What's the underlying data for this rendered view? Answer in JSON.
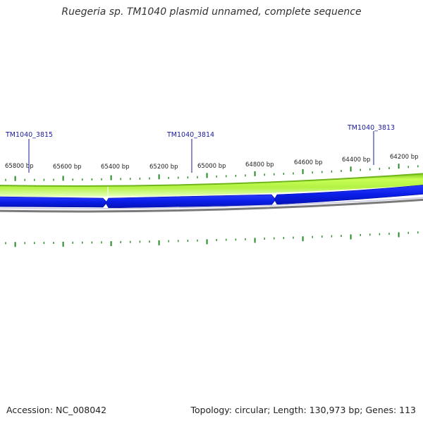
{
  "title": "Ruegeria sp. TM1040 plasmid unnamed, complete sequence",
  "footer": {
    "accession": "Accession: NC_008042",
    "summary": "Topology: circular; Length: 130,973 bp; Genes: 113"
  },
  "colors": {
    "gc_band": "#a8f040",
    "gc_band_edge": "#6fb51c",
    "gene_forward": "#0a1ee8",
    "backbone": "#7a7a7a",
    "tick": "#228b22",
    "gene_label": "#1a1a9a"
  },
  "ruler": {
    "labels": [
      "65800 bp",
      "65600 bp",
      "65400 bp",
      "65200 bp",
      "65000 bp",
      "64800 bp",
      "64600 bp",
      "64400 bp",
      "64200 bp"
    ]
  },
  "genes": [
    {
      "name": "TM1040_3815"
    },
    {
      "name": "TM1040_3814"
    },
    {
      "name": "TM1040_3813"
    }
  ]
}
